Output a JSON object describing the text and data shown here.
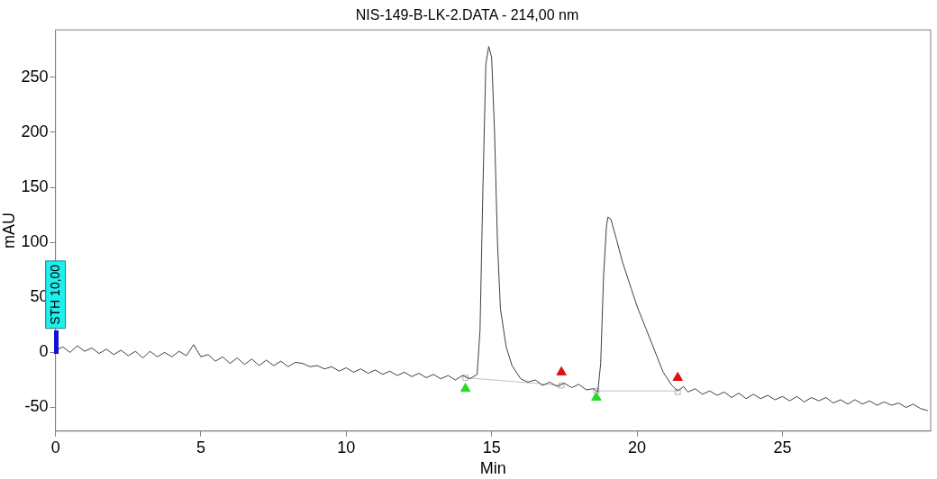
{
  "chart_data": {
    "type": "line",
    "title": "NIS-149-B-LK-2.DATA - 214,00 nm",
    "xlabel": "Min",
    "ylabel": "mAU",
    "xlim": [
      0,
      30.1
    ],
    "xticks": [
      0,
      5,
      10,
      15,
      20,
      25
    ],
    "ylim": [
      -71.5,
      293
    ],
    "yticks": [
      -50,
      0,
      50,
      100,
      150,
      200,
      250
    ],
    "grid": false,
    "legend": false,
    "annotations": [
      "STH 10,00"
    ],
    "series": [
      {
        "type": "line",
        "color": "#404040",
        "marker": "none",
        "x": [
          0,
          0.25,
          0.5,
          0.75,
          1,
          1.25,
          1.5,
          1.75,
          2,
          2.25,
          2.5,
          2.75,
          3,
          3.25,
          3.5,
          3.75,
          4,
          4.25,
          4.5,
          4.75,
          5,
          5.25,
          5.5,
          5.75,
          6,
          6.25,
          6.5,
          6.75,
          7,
          7.25,
          7.5,
          7.75,
          8,
          8.25,
          8.5,
          8.75,
          9,
          9.25,
          9.5,
          9.75,
          10,
          10.25,
          10.5,
          10.75,
          11,
          11.25,
          11.5,
          11.75,
          12,
          12.25,
          12.5,
          12.75,
          13,
          13.25,
          13.5,
          13.75,
          14,
          14.25,
          14.5,
          14.6,
          14.7,
          14.8,
          14.9,
          15,
          15.1,
          15.2,
          15.3,
          15.5,
          15.7,
          16,
          16.25,
          16.5,
          16.75,
          17,
          17.25,
          17.5,
          17.75,
          18,
          18.25,
          18.5,
          18.65,
          18.75,
          18.85,
          18.95,
          19,
          19.1,
          19.3,
          19.5,
          19.8,
          20,
          20.3,
          20.6,
          20.9,
          21.2,
          21.4,
          21.6,
          21.75,
          22,
          22.25,
          22.5,
          22.75,
          23,
          23.25,
          23.5,
          23.75,
          24,
          24.25,
          24.5,
          24.75,
          25,
          25.25,
          25.5,
          25.75,
          26,
          26.25,
          26.5,
          26.75,
          27,
          27.25,
          27.5,
          27.75,
          28,
          28.25,
          28.5,
          28.75,
          29,
          29.25,
          29.5,
          29.75,
          30
        ],
        "values": [
          2,
          5,
          0,
          6,
          1,
          4,
          -1,
          3,
          -2,
          2,
          -3,
          1,
          -5,
          1,
          -4,
          0,
          -4,
          1,
          -3,
          7,
          -4,
          -2,
          -8,
          -4,
          -10,
          -5,
          -11,
          -6,
          -12,
          -7,
          -12,
          -8,
          -13,
          -9,
          -10,
          -13,
          -12,
          -15,
          -13,
          -17,
          -14,
          -18,
          -15,
          -19,
          -16,
          -20,
          -17,
          -21,
          -18,
          -22,
          -19,
          -23,
          -20,
          -24,
          -21,
          -25,
          -21,
          -24,
          -20,
          20,
          150,
          262,
          278,
          268,
          200,
          100,
          40,
          5,
          -12,
          -24,
          -27,
          -25,
          -30,
          -27,
          -31,
          -28,
          -32,
          -29,
          -34,
          -33,
          -36,
          -10,
          70,
          115,
          123,
          121,
          102,
          82,
          58,
          42,
          22,
          2,
          -18,
          -30,
          -35,
          -31,
          -36,
          -33,
          -38,
          -35,
          -39,
          -36,
          -41,
          -37,
          -42,
          -38,
          -42,
          -39,
          -43,
          -40,
          -44,
          -40,
          -45,
          -41,
          -44,
          -41,
          -46,
          -43,
          -47,
          -43,
          -47,
          -44,
          -48,
          -45,
          -48,
          -46,
          -50,
          -47,
          -51,
          -53
        ]
      },
      {
        "type": "line",
        "color": "#c0c0c0",
        "marker": "none",
        "x": [
          14.1,
          17.4,
          18,
          18.6,
          21.4
        ],
        "values": [
          -23,
          -30,
          null,
          -35,
          -35
        ]
      },
      {
        "type": "scatter",
        "color": "#b0b0b0",
        "marker": "square",
        "x": [
          14.1,
          17.4,
          18.6,
          21.4
        ],
        "values": [
          -23,
          -30,
          -35,
          -36
        ]
      },
      {
        "type": "scatter",
        "color": "#22dd22",
        "marker": "triangle",
        "x": [
          14.1,
          18.6
        ],
        "values": [
          -33,
          -41
        ]
      },
      {
        "type": "scatter",
        "color": "#dd1111",
        "marker": "triangle",
        "x": [
          17.4,
          21.4
        ],
        "values": [
          -18,
          -23
        ]
      }
    ]
  }
}
